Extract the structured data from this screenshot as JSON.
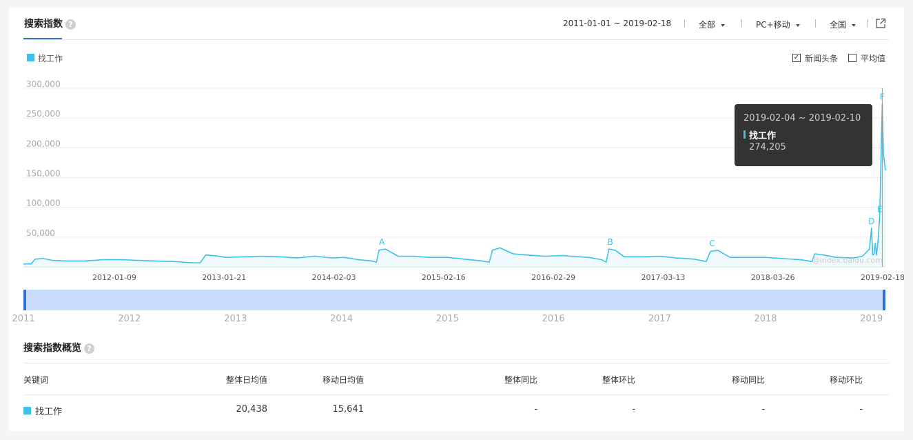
{
  "header": {
    "title": "搜索指数",
    "help_icon": "?",
    "date_range": "2011-01-01 ~ 2019-02-18",
    "filters": [
      "全部",
      "PC+移动",
      "全国"
    ],
    "share_icon": "external-link-icon"
  },
  "legend": {
    "series_name": "找工作",
    "checkbox_news": "新闻头条",
    "checkbox_avg": "平均值",
    "news_checked": true,
    "avg_checked": false
  },
  "chart_data": {
    "type": "area",
    "series": [
      {
        "name": "找工作",
        "color": "#3bc1ec",
        "points": [
          [
            "2011-01-01",
            5000
          ],
          [
            "2011-01-28",
            5000
          ],
          [
            "2011-02-10",
            13000
          ],
          [
            "2011-03-10",
            14000
          ],
          [
            "2011-04-10",
            11000
          ],
          [
            "2011-06-01",
            10000
          ],
          [
            "2011-08-01",
            10000
          ],
          [
            "2011-10-01",
            12000
          ],
          [
            "2011-12-01",
            12000
          ],
          [
            "2012-02-01",
            11000
          ],
          [
            "2012-04-01",
            10000
          ],
          [
            "2012-06-01",
            9000
          ],
          [
            "2012-08-01",
            7000
          ],
          [
            "2012-09-01",
            7000
          ],
          [
            "2012-09-20",
            20000
          ],
          [
            "2012-10-15",
            19000
          ],
          [
            "2012-12-01",
            16000
          ],
          [
            "2013-02-01",
            17000
          ],
          [
            "2013-04-01",
            18000
          ],
          [
            "2013-06-01",
            17000
          ],
          [
            "2013-08-01",
            15000
          ],
          [
            "2013-10-01",
            18000
          ],
          [
            "2013-12-01",
            15000
          ],
          [
            "2014-01-10",
            16000
          ],
          [
            "2014-03-01",
            12000
          ],
          [
            "2014-04-15",
            10000
          ],
          [
            "2014-05-01",
            8000
          ],
          [
            "2014-05-10",
            28000
          ],
          [
            "2014-06-01",
            30000
          ],
          [
            "2014-07-15",
            18000
          ],
          [
            "2014-09-01",
            18000
          ],
          [
            "2014-11-01",
            16000
          ],
          [
            "2015-01-01",
            16000
          ],
          [
            "2015-03-01",
            13000
          ],
          [
            "2015-05-01",
            10000
          ],
          [
            "2015-05-25",
            8000
          ],
          [
            "2015-06-05",
            28000
          ],
          [
            "2015-07-01",
            32000
          ],
          [
            "2015-08-15",
            22000
          ],
          [
            "2015-10-01",
            20000
          ],
          [
            "2015-12-01",
            18000
          ],
          [
            "2016-02-01",
            19000
          ],
          [
            "2016-03-01",
            18000
          ],
          [
            "2016-05-01",
            16000
          ],
          [
            "2016-06-15",
            12000
          ],
          [
            "2016-07-01",
            8000
          ],
          [
            "2016-07-10",
            30000
          ],
          [
            "2016-08-01",
            28000
          ],
          [
            "2016-09-01",
            17000
          ],
          [
            "2016-11-01",
            17000
          ],
          [
            "2017-01-01",
            18000
          ],
          [
            "2017-03-01",
            15000
          ],
          [
            "2017-05-01",
            13000
          ],
          [
            "2017-06-10",
            9000
          ],
          [
            "2017-06-25",
            26000
          ],
          [
            "2017-07-20",
            28000
          ],
          [
            "2017-09-01",
            16000
          ],
          [
            "2017-11-01",
            16000
          ],
          [
            "2018-01-01",
            16000
          ],
          [
            "2018-03-01",
            14000
          ],
          [
            "2018-05-01",
            12000
          ],
          [
            "2018-06-10",
            9000
          ],
          [
            "2018-06-20",
            22000
          ],
          [
            "2018-07-20",
            20000
          ],
          [
            "2018-09-01",
            16000
          ],
          [
            "2018-11-01",
            15000
          ],
          [
            "2018-12-01",
            18000
          ],
          [
            "2018-12-25",
            30000
          ],
          [
            "2019-01-01",
            65000
          ],
          [
            "2019-01-05",
            20000
          ],
          [
            "2019-01-10",
            22000
          ],
          [
            "2019-01-14",
            40000
          ],
          [
            "2019-01-18",
            20000
          ],
          [
            "2019-01-22",
            35000
          ],
          [
            "2019-01-26",
            60000
          ],
          [
            "2019-01-29",
            85000
          ],
          [
            "2019-02-01",
            140000
          ],
          [
            "2019-02-04",
            210000
          ],
          [
            "2019-02-07",
            274205
          ],
          [
            "2019-02-11",
            190000
          ],
          [
            "2019-02-18",
            162000
          ]
        ]
      }
    ],
    "xlim": [
      "2011-01-01",
      "2019-02-18"
    ],
    "ylim": [
      0,
      300000
    ],
    "y_ticks": [
      "300,000",
      "250,000",
      "200,000",
      "150,000",
      "100,000",
      "50,000"
    ],
    "x_tick_labels": [
      "2012-01-09",
      "2013-01-21",
      "2014-02-03",
      "2015-02-16",
      "2016-02-29",
      "2017-03-13",
      "2018-03-26",
      "2019-02-18"
    ],
    "annotations": [
      {
        "label": "A",
        "x": "2014-05-20",
        "y": 30000
      },
      {
        "label": "B",
        "x": "2016-07-15",
        "y": 30000
      },
      {
        "label": "C",
        "x": "2017-07-01",
        "y": 28000
      },
      {
        "label": "D",
        "x": "2019-01-01",
        "y": 65000
      },
      {
        "label": "E",
        "x": "2019-01-29",
        "y": 85000
      },
      {
        "label": "F",
        "x": "2019-02-07",
        "y": 274205
      }
    ],
    "grid": true,
    "watermark": "@index.baidu.com",
    "range_years": [
      "2011",
      "2012",
      "2013",
      "2014",
      "2015",
      "2016",
      "2017",
      "2018",
      "2019"
    ]
  },
  "tooltip": {
    "date": "2019-02-04 ~ 2019-02-10",
    "name": "找工作",
    "value": "274,205"
  },
  "summary": {
    "title": "搜索指数概览",
    "columns": [
      "关键词",
      "整体日均值",
      "移动日均值",
      "整体同比",
      "整体环比",
      "移动同比",
      "移动环比"
    ],
    "row": {
      "keyword": "找工作",
      "overall_avg": "20,438",
      "mobile_avg": "15,641",
      "overall_yoy": "-",
      "overall_mom": "-",
      "mobile_yoy": "-",
      "mobile_mom": "-"
    }
  }
}
